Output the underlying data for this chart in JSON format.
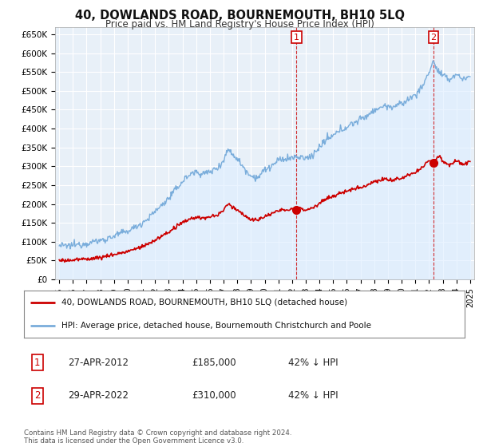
{
  "title": "40, DOWLANDS ROAD, BOURNEMOUTH, BH10 5LQ",
  "subtitle": "Price paid vs. HM Land Registry's House Price Index (HPI)",
  "hpi_color": "#7aaddb",
  "hpi_fill": "#ddeeff",
  "price_color": "#cc0000",
  "background_color": "#ffffff",
  "plot_bg": "#e8f0f8",
  "grid_color": "#ffffff",
  "ylim": [
    0,
    670000
  ],
  "yticks": [
    0,
    50000,
    100000,
    150000,
    200000,
    250000,
    300000,
    350000,
    400000,
    450000,
    500000,
    550000,
    600000,
    650000
  ],
  "ytick_labels": [
    "£0",
    "£50K",
    "£100K",
    "£150K",
    "£200K",
    "£250K",
    "£300K",
    "£350K",
    "£400K",
    "£450K",
    "£500K",
    "£550K",
    "£600K",
    "£650K"
  ],
  "xlim_start": 1994.7,
  "xlim_end": 2025.3,
  "sale1_x": 2012.32,
  "sale1_y": 185000,
  "sale2_x": 2022.33,
  "sale2_y": 310000,
  "annotation1": {
    "date": "27-APR-2012",
    "price": "£185,000",
    "change": "42% ↓ HPI"
  },
  "annotation2": {
    "date": "29-APR-2022",
    "price": "£310,000",
    "change": "42% ↓ HPI"
  },
  "legend_line1": "40, DOWLANDS ROAD, BOURNEMOUTH, BH10 5LQ (detached house)",
  "legend_line2": "HPI: Average price, detached house, Bournemouth Christchurch and Poole",
  "footnote": "Contains HM Land Registry data © Crown copyright and database right 2024.\nThis data is licensed under the Open Government Licence v3.0."
}
